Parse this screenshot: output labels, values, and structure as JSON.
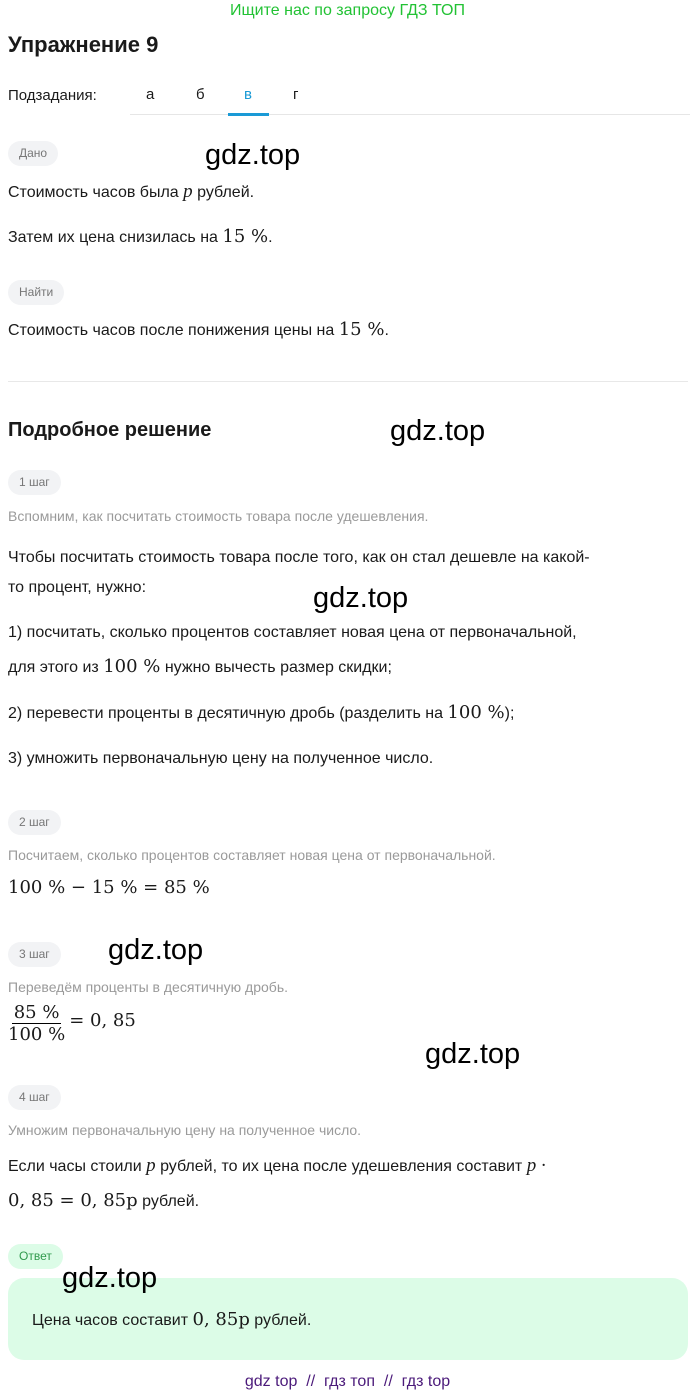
{
  "banner": "Ищите нас по запросу ГДЗ ТОП",
  "title": "Упражнение 9",
  "subtasks": {
    "label": "Подзадания:",
    "tabs": [
      "а",
      "б",
      "в",
      "г"
    ],
    "active": "в",
    "accent": "#1a9ad6"
  },
  "given": {
    "label": "Дано",
    "line1a": "Стоимость часов была",
    "p": "p",
    "line1b": "рублей.",
    "line2a": "Затем их цена снизилась на",
    "pct": "15 %",
    "line2b": "."
  },
  "find": {
    "label": "Найти",
    "line1a": "Стоимость часов после понижения цены на",
    "pct": "15 %",
    "line1b": "."
  },
  "solution": {
    "heading": "Подробное решение",
    "step1": {
      "label": "1 шаг",
      "hint": "Вспомним, как посчитать стоимость товара после удешевления.",
      "p1": "Чтобы посчитать стоимость товара после того, как он стал дешевле на какой-",
      "p2": "то процент, нужно:",
      "i1a": "1) посчитать, сколько процентов составляет новая цена от первоначальной,",
      "i1b": "для этого из",
      "i1m": "100 %",
      "i1c": "нужно вычесть размер скидки;",
      "i2a": "2) перевести проценты в десятичную дробь (разделить на",
      "i2m": "100 %",
      "i2b": ");",
      "i3": "3) умножить первоначальную цену на полученное число."
    },
    "step2": {
      "label": "2 шаг",
      "hint": "Посчитаем, сколько процентов составляет новая цена от первоначальной.",
      "math": "100 % − 15 % = 85 %"
    },
    "step3": {
      "label": "3 шаг",
      "hint": "Переведём проценты в десятичную дробь.",
      "num": "85 %",
      "den": "100 %",
      "rest": "= 0, 85"
    },
    "step4": {
      "label": "4 шаг",
      "hint": "Умножим первоначальную цену на полученное число.",
      "l1a": "Если часы стоили",
      "p": "p",
      "l1b": "рублей, то их цена после удешевления составит",
      "l1c": "p ·",
      "l2m": "0, 85 = 0, 85p",
      "l2b": "рублей."
    }
  },
  "answer": {
    "label": "Ответ",
    "a": "Цена часов составит",
    "m": "0, 85p",
    "b": "рублей.",
    "bg": "#dcfce7"
  },
  "watermark": "gdz.top",
  "footer": "gdz top  //  гдз топ  //  гдз top"
}
